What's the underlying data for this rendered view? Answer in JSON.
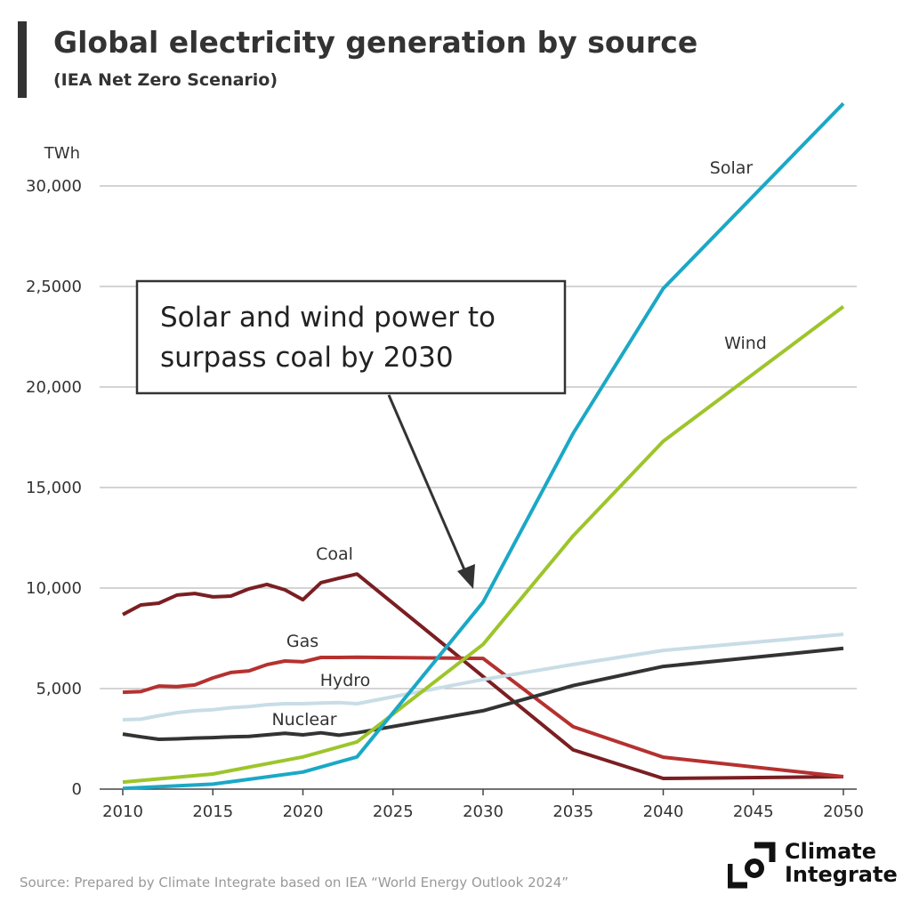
{
  "title": "Global electricity generation by source",
  "subtitle": "(IEA Net Zero Scenario)",
  "source": "Source: Prepared by Climate Integrate based on IEA “World Energy Outlook 2024”",
  "logo": {
    "line1": "Climate",
    "line2": "Integrate"
  },
  "annotation": {
    "line1": "Solar and wind power to",
    "line2": "surpass coal by 2030"
  },
  "chart_data": {
    "type": "line",
    "title": "Global electricity generation by source",
    "ylabel": "TWh",
    "ylim": [
      0,
      30000
    ],
    "xlim": [
      2010,
      2050
    ],
    "grid": true,
    "legend": "inline labels",
    "x_ticks": [
      "2010",
      "2015",
      "2020",
      "2025",
      "2030",
      "2035",
      "2040",
      "2045",
      "2050"
    ],
    "y_ticks": [
      {
        "value": 0,
        "label": "0"
      },
      {
        "value": 5000,
        "label": "5,000"
      },
      {
        "value": 10000,
        "label": "10,000"
      },
      {
        "value": 15000,
        "label": "15,000"
      },
      {
        "value": 20000,
        "label": "20,000"
      },
      {
        "value": 25000,
        "label": "2,5000"
      },
      {
        "value": 30000,
        "label": "30,000"
      }
    ],
    "series": [
      {
        "name": "Coal",
        "color": "#7a1f22",
        "x": [
          2010,
          2011,
          2012,
          2013,
          2014,
          2015,
          2016,
          2017,
          2018,
          2019,
          2020,
          2021,
          2022,
          2023,
          2030,
          2035,
          2040,
          2050
        ],
        "y": [
          8680,
          9160,
          9250,
          9650,
          9730,
          9560,
          9600,
          9960,
          10180,
          9910,
          9420,
          10270,
          10490,
          10700,
          5600,
          1950,
          530,
          620
        ]
      },
      {
        "name": "Gas",
        "color": "#b5312f",
        "x": [
          2010,
          2011,
          2012,
          2013,
          2014,
          2015,
          2016,
          2017,
          2018,
          2019,
          2020,
          2021,
          2022,
          2023,
          2030,
          2035,
          2040,
          2050
        ],
        "y": [
          4820,
          4850,
          5130,
          5100,
          5180,
          5530,
          5800,
          5880,
          6190,
          6370,
          6330,
          6550,
          6550,
          6560,
          6500,
          3100,
          1590,
          620
        ]
      },
      {
        "name": "Hydro",
        "color": "#c8dde6",
        "x": [
          2010,
          2011,
          2012,
          2013,
          2014,
          2015,
          2016,
          2017,
          2018,
          2019,
          2020,
          2021,
          2022,
          2023,
          2030,
          2035,
          2040,
          2050
        ],
        "y": [
          3450,
          3480,
          3650,
          3800,
          3900,
          3950,
          4050,
          4100,
          4200,
          4250,
          4250,
          4280,
          4300,
          4250,
          5450,
          6200,
          6900,
          7700
        ]
      },
      {
        "name": "Nuclear",
        "color": "#333333",
        "x": [
          2010,
          2011,
          2012,
          2013,
          2014,
          2015,
          2016,
          2017,
          2018,
          2019,
          2020,
          2021,
          2022,
          2023,
          2030,
          2035,
          2040,
          2050
        ],
        "y": [
          2740,
          2600,
          2480,
          2500,
          2540,
          2560,
          2600,
          2620,
          2700,
          2780,
          2700,
          2800,
          2680,
          2800,
          3900,
          5150,
          6100,
          7000
        ]
      },
      {
        "name": "Wind",
        "color": "#9dc52b",
        "x": [
          2010,
          2015,
          2020,
          2023,
          2030,
          2035,
          2040,
          2050
        ],
        "y": [
          350,
          750,
          1600,
          2350,
          7200,
          12600,
          17300,
          24000
        ]
      },
      {
        "name": "Solar",
        "color": "#1ba8c6",
        "x": [
          2010,
          2015,
          2020,
          2023,
          2030,
          2035,
          2040,
          2050
        ],
        "y": [
          30,
          250,
          850,
          1600,
          9300,
          17700,
          24900,
          34100
        ]
      }
    ]
  }
}
